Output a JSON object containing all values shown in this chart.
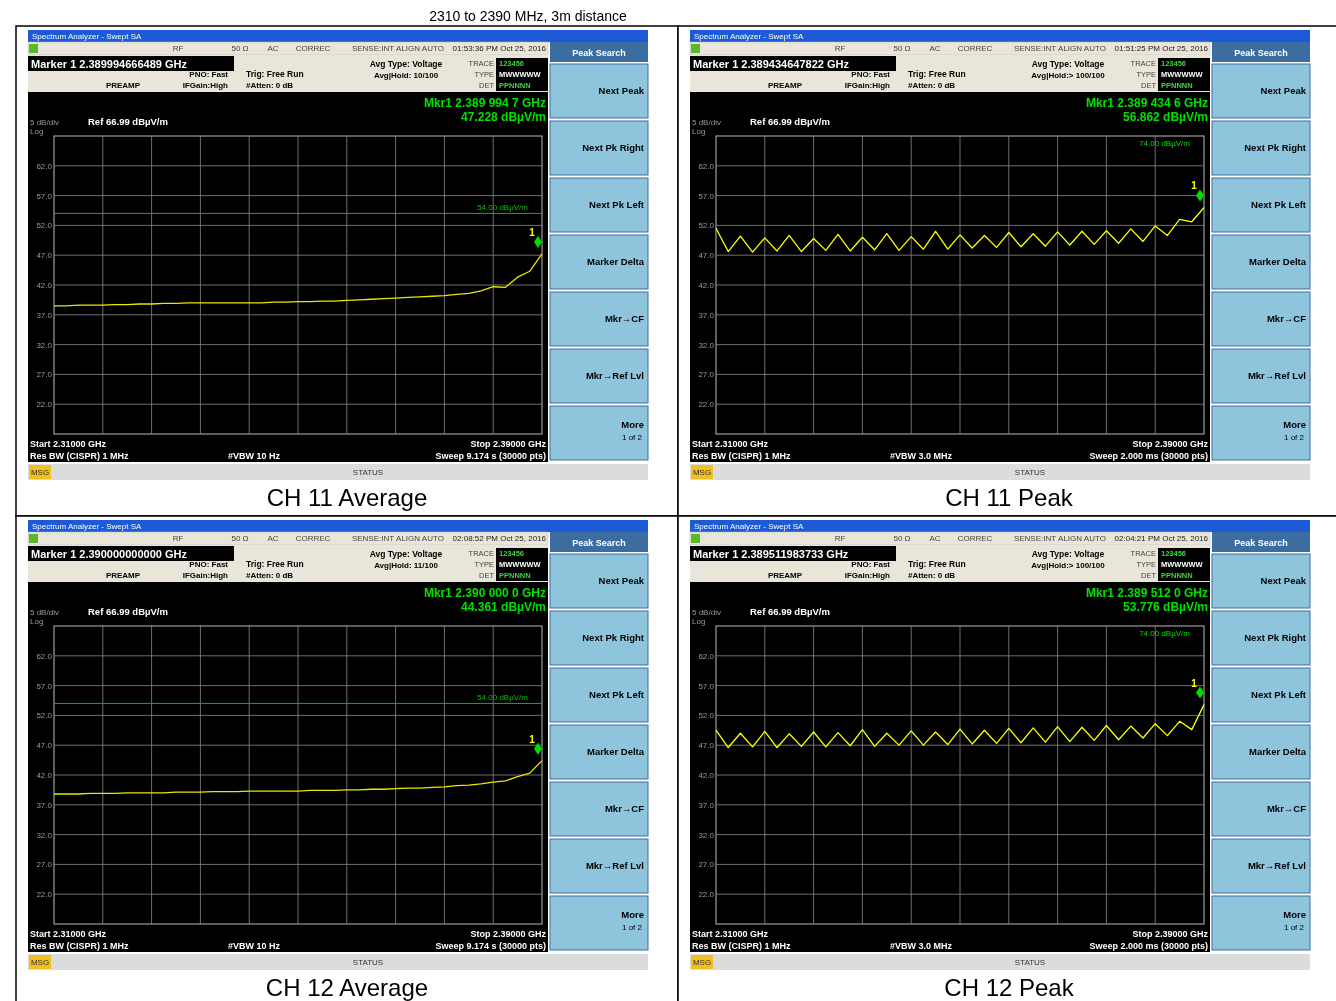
{
  "chart_data": [
    {
      "type": "line",
      "title": "CH 11 Average",
      "subtitle": "2310 to 2390 MHz, 3m distance",
      "ylim": [
        16.99,
        66.99
      ],
      "tick_labels": "y",
      "grid": true,
      "categories": [
        null,
        null,
        null,
        null,
        null,
        null,
        null,
        null,
        null,
        null,
        null,
        null,
        null,
        null,
        null,
        null,
        null,
        null,
        null,
        null,
        null,
        null,
        null,
        null,
        null,
        null,
        null,
        null,
        null,
        null,
        null,
        null,
        null,
        null,
        null,
        null,
        null,
        null,
        null,
        null,
        null
      ],
      "yticks": [
        {
          "value": 61.99,
          "label": "62.0"
        },
        {
          "value": 56.99,
          "label": "57.0"
        },
        {
          "value": 51.99,
          "label": "52.0"
        },
        {
          "value": 46.99,
          "label": "47.0"
        },
        {
          "value": 41.99,
          "label": "42.0"
        },
        {
          "value": 36.99,
          "label": "37.0"
        },
        {
          "value": 31.99,
          "label": "32.0"
        },
        {
          "value": 26.99,
          "label": "27.0"
        },
        {
          "value": 21.99,
          "label": "22.0"
        }
      ],
      "ref_lines": [
        {
          "axis": "y",
          "value": 54,
          "label": "54.00 dBµV/m",
          "color": "#00c000"
        }
      ],
      "series": [
        {
          "type": "line",
          "color": "#e8e800",
          "values": [
            38.5,
            38.5,
            38.6,
            38.6,
            38.6,
            38.7,
            38.7,
            38.8,
            38.8,
            38.9,
            38.9,
            39.0,
            39.0,
            39.0,
            39.0,
            39.0,
            39.0,
            39.0,
            39.1,
            39.1,
            39.2,
            39.2,
            39.3,
            39.3,
            39.4,
            39.5,
            39.6,
            39.7,
            39.8,
            39.9,
            40.0,
            40.1,
            40.2,
            40.4,
            40.6,
            41.0,
            41.7,
            41.6,
            43.3,
            44.3,
            47.2
          ]
        }
      ],
      "annotations": [
        "Spectrum Analyzer - Swept SA",
        "RF",
        "50 Ω",
        "AC",
        "CORREC",
        "SENSE:INT",
        "ALIGN AUTO",
        "01:53:36 PM Oct 25, 2016",
        "Marker 1 2.389994666489 GHz",
        "PNO: Fast",
        "IFGain:High",
        "PREAMP",
        "Trig: Free Run",
        "#Atten: 0 dB",
        "Avg Type: Voltage",
        "Avg|Hold: 10/100",
        "TRACE",
        "TYPE",
        "DET",
        "123456",
        "MWWWWW",
        "PPNNNN",
        "Mkr1 2.389 994 7 GHz",
        "47.228 dBµV/m",
        "5 dB/div",
        "Log",
        "Ref 66.99 dBµV/m",
        "Start 2.31000 GHz",
        "Stop 2.39000 GHz",
        "Res BW (CISPR) 1 MHz",
        "#VBW 10 Hz",
        "Sweep 9.174 s (30000 pts)",
        "Peak Search",
        "Next Peak",
        "Next Pk Right",
        "Next Pk Left",
        "Marker Delta",
        "Mkr→CF",
        "Mkr→Ref Lvl",
        "More",
        "1 of 2",
        "MSG",
        "STATUS",
        "1"
      ]
    },
    {
      "type": "line",
      "title": "CH 11 Peak",
      "ylim": [
        16.99,
        66.99
      ],
      "tick_labels": "y",
      "grid": true,
      "categories": [
        null,
        null,
        null,
        null,
        null,
        null,
        null,
        null,
        null,
        null,
        null,
        null,
        null,
        null,
        null,
        null,
        null,
        null,
        null,
        null,
        null,
        null,
        null,
        null,
        null,
        null,
        null,
        null,
        null,
        null,
        null,
        null,
        null,
        null,
        null,
        null,
        null,
        null,
        null,
        null,
        null
      ],
      "yticks": [
        {
          "value": 61.99,
          "label": "62.0"
        },
        {
          "value": 56.99,
          "label": "57.0"
        },
        {
          "value": 51.99,
          "label": "52.0"
        },
        {
          "value": 46.99,
          "label": "47.0"
        },
        {
          "value": 41.99,
          "label": "42.0"
        },
        {
          "value": 36.99,
          "label": "37.0"
        },
        {
          "value": 31.99,
          "label": "32.0"
        },
        {
          "value": 26.99,
          "label": "27.0"
        },
        {
          "value": 21.99,
          "label": "22.0"
        }
      ],
      "series": [
        {
          "type": "line",
          "color": "#ffff00",
          "values": [
            51.5,
            47.6,
            50.2,
            47.5,
            49.9,
            47.7,
            50.3,
            47.6,
            49.8,
            47.8,
            50.5,
            47.7,
            50.0,
            47.9,
            50.6,
            47.8,
            50.1,
            48.0,
            51.0,
            48.0,
            50.4,
            48.2,
            50.3,
            48.3,
            50.8,
            48.4,
            50.6,
            48.5,
            50.9,
            48.7,
            51.0,
            48.8,
            51.1,
            49.0,
            51.4,
            49.3,
            51.9,
            50.3,
            53.0,
            52.6,
            55.0
          ]
        }
      ],
      "annotations": [
        "Spectrum Analyzer - Swept SA",
        "RF",
        "50 Ω",
        "AC",
        "CORREC",
        "SENSE:INT",
        "ALIGN AUTO",
        "01:51:25 PM Oct 25, 2016",
        "Marker 1 2.389434647822 GHz",
        "PNO: Fast",
        "IFGain:High",
        "PREAMP",
        "Trig: Free Run",
        "#Atten: 0 dB",
        "Avg Type: Voltage",
        "Avg|Hold:> 100/100",
        "TRACE",
        "TYPE",
        "DET",
        "123456",
        "MWWWWW",
        "PPNNNN",
        "Mkr1 2.389 434 6 GHz",
        "56.862 dBµV/m",
        "5 dB/div",
        "Log",
        "Ref 66.99 dBµV/m",
        "Start 2.31000 GHz",
        "Stop 2.39000 GHz",
        "Res BW (CISPR) 1 MHz",
        "#VBW 3.0 MHz",
        "Sweep 2.000 ms (30000 pts)",
        "Peak Search",
        "Next Peak",
        "Next Pk Right",
        "Next Pk Left",
        "Marker Delta",
        "Mkr→CF",
        "Mkr→Ref Lvl",
        "More",
        "1 of 2",
        "MSG",
        "STATUS",
        "1",
        "74.00 dBµV/m"
      ]
    },
    {
      "type": "line",
      "title": "CH 12 Average",
      "ylim": [
        16.99,
        66.99
      ],
      "tick_labels": "y",
      "grid": true,
      "categories": [
        null,
        null,
        null,
        null,
        null,
        null,
        null,
        null,
        null,
        null,
        null,
        null,
        null,
        null,
        null,
        null,
        null,
        null,
        null,
        null,
        null,
        null,
        null,
        null,
        null,
        null,
        null,
        null,
        null,
        null,
        null,
        null,
        null,
        null,
        null,
        null,
        null,
        null,
        null,
        null,
        null
      ],
      "yticks": [
        {
          "value": 61.99,
          "label": "62.0"
        },
        {
          "value": 56.99,
          "label": "57.0"
        },
        {
          "value": 51.99,
          "label": "52.0"
        },
        {
          "value": 46.99,
          "label": "47.0"
        },
        {
          "value": 41.99,
          "label": "42.0"
        },
        {
          "value": 36.99,
          "label": "37.0"
        },
        {
          "value": 31.99,
          "label": "32.0"
        },
        {
          "value": 26.99,
          "label": "27.0"
        },
        {
          "value": 21.99,
          "label": "22.0"
        }
      ],
      "ref_lines": [
        {
          "axis": "y",
          "value": 54,
          "label": "54.00 dBµV/m",
          "color": "#00c000"
        }
      ],
      "series": [
        {
          "type": "line",
          "color": "#e8e800",
          "values": [
            38.8,
            38.8,
            38.8,
            38.9,
            38.9,
            38.9,
            39.0,
            39.0,
            39.0,
            39.0,
            39.1,
            39.1,
            39.1,
            39.2,
            39.2,
            39.2,
            39.3,
            39.3,
            39.3,
            39.3,
            39.3,
            39.4,
            39.4,
            39.4,
            39.5,
            39.5,
            39.6,
            39.6,
            39.7,
            39.8,
            39.8,
            39.9,
            40.0,
            40.2,
            40.3,
            40.5,
            40.8,
            41.0,
            41.7,
            42.3,
            44.4
          ]
        }
      ],
      "annotations": [
        "Spectrum Analyzer - Swept SA",
        "RF",
        "50 Ω",
        "AC",
        "CORREC",
        "SENSE:INT",
        "ALIGN AUTO",
        "02:08:52 PM Oct 25, 2016",
        "Marker 1 2.390000000000 GHz",
        "PNO: Fast",
        "IFGain:High",
        "PREAMP",
        "Trig: Free Run",
        "#Atten: 0 dB",
        "Avg Type: Voltage",
        "Avg|Hold: 11/100",
        "TRACE",
        "TYPE",
        "DET",
        "123456",
        "MWWWWW",
        "PPNNNN",
        "Mkr1 2.390 000 0 GHz",
        "44.361 dBµV/m",
        "5 dB/div",
        "Log",
        "Ref 66.99 dBµV/m",
        "Start 2.31000 GHz",
        "Stop 2.39000 GHz",
        "Res BW (CISPR) 1 MHz",
        "#VBW 10 Hz",
        "Sweep 9.174 s (30000 pts)",
        "Peak Search",
        "Next Peak",
        "Next Pk Right",
        "Next Pk Left",
        "Marker Delta",
        "Mkr→CF",
        "Mkr→Ref Lvl",
        "More",
        "1 of 2",
        "MSG",
        "STATUS",
        "1"
      ]
    },
    {
      "type": "line",
      "title": "CH 12 Peak",
      "ylim": [
        16.99,
        66.99
      ],
      "tick_labels": "y",
      "grid": true,
      "categories": [
        null,
        null,
        null,
        null,
        null,
        null,
        null,
        null,
        null,
        null,
        null,
        null,
        null,
        null,
        null,
        null,
        null,
        null,
        null,
        null,
        null,
        null,
        null,
        null,
        null,
        null,
        null,
        null,
        null,
        null,
        null,
        null,
        null,
        null,
        null,
        null,
        null,
        null,
        null,
        null,
        null
      ],
      "yticks": [
        {
          "value": 61.99,
          "label": "62.0"
        },
        {
          "value": 56.99,
          "label": "57.0"
        },
        {
          "value": 51.99,
          "label": "52.0"
        },
        {
          "value": 46.99,
          "label": "47.0"
        },
        {
          "value": 41.99,
          "label": "42.0"
        },
        {
          "value": 36.99,
          "label": "37.0"
        },
        {
          "value": 31.99,
          "label": "32.0"
        },
        {
          "value": 26.99,
          "label": "27.0"
        },
        {
          "value": 21.99,
          "label": "22.0"
        }
      ],
      "series": [
        {
          "type": "line",
          "color": "#ffff00",
          "values": [
            49.5,
            46.6,
            49.0,
            46.7,
            49.3,
            46.6,
            48.9,
            46.8,
            49.2,
            46.7,
            49.1,
            46.9,
            49.6,
            46.8,
            49.0,
            47.0,
            49.4,
            47.0,
            49.2,
            47.1,
            49.7,
            47.2,
            49.5,
            47.3,
            49.8,
            47.4,
            49.9,
            47.5,
            50.1,
            47.6,
            50.0,
            47.8,
            50.3,
            47.9,
            50.2,
            48.2,
            50.6,
            48.6,
            51.0,
            49.6,
            53.8
          ]
        }
      ],
      "annotations": [
        "Spectrum Analyzer - Swept SA",
        "RF",
        "50 Ω",
        "AC",
        "CORREC",
        "SENSE:INT",
        "ALIGN AUTO",
        "02:04:21 PM Oct 25, 2016",
        "Marker 1 2.389511983733 GHz",
        "PNO: Fast",
        "IFGain:High",
        "PREAMP",
        "Trig: Free Run",
        "#Atten: 0 dB",
        "Avg Type: Voltage",
        "Avg|Hold:> 100/100",
        "TRACE",
        "TYPE",
        "DET",
        "123456",
        "MWWWWW",
        "PPNNNN",
        "Mkr1 2.389 512 0 GHz",
        "53.776 dBµV/m",
        "5 dB/div",
        "Log",
        "Ref 66.99 dBµV/m",
        "Start 2.31000 GHz",
        "Stop 2.39000 GHz",
        "Res BW (CISPR) 1 MHz",
        "#VBW 3.0 MHz",
        "Sweep 2.000 ms (30000 pts)",
        "Peak Search",
        "Next Peak",
        "Next Pk Right",
        "Next Pk Left",
        "Marker Delta",
        "Mkr→CF",
        "Mkr→Ref Lvl",
        "More",
        "1 of 2",
        "MSG",
        "STATUS",
        "1",
        "74.00 dBµV/m"
      ]
    }
  ]
}
